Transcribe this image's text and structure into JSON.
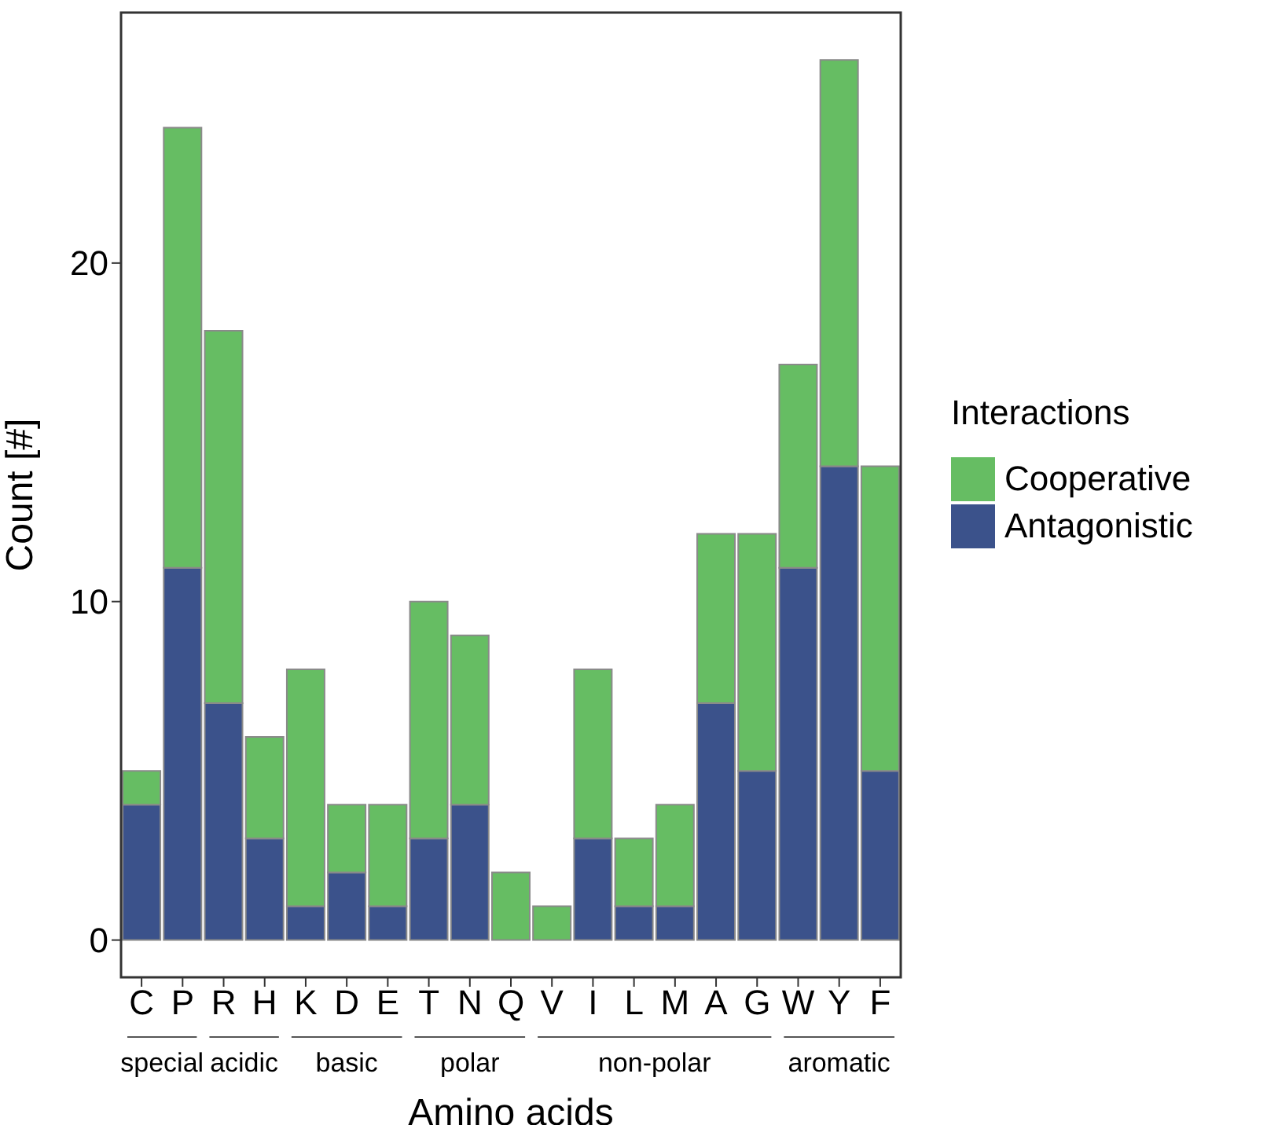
{
  "chart_data": {
    "type": "bar",
    "stacked": true,
    "xlabel": "Amino acids",
    "ylabel": "Count [#]",
    "legend_title": "Interactions",
    "legend": "right",
    "categories": [
      "C",
      "P",
      "R",
      "H",
      "K",
      "D",
      "E",
      "T",
      "N",
      "Q",
      "V",
      "I",
      "L",
      "M",
      "A",
      "G",
      "W",
      "Y",
      "F"
    ],
    "series": [
      {
        "name": "Antagonistic",
        "color": "#3b528b",
        "values": [
          4,
          11,
          7,
          3,
          1,
          2,
          1,
          3,
          4,
          0,
          0,
          3,
          1,
          1,
          7,
          5,
          11,
          14,
          5
        ]
      },
      {
        "name": "Cooperative",
        "color": "#66bd63",
        "values": [
          1,
          13,
          11,
          3,
          7,
          2,
          3,
          7,
          5,
          2,
          1,
          5,
          2,
          3,
          5,
          7,
          6,
          12,
          9
        ]
      }
    ],
    "ylim": [
      -1.1,
      27.4
    ],
    "yticks": [
      0,
      10,
      20
    ],
    "grid": false,
    "annotations": [
      "special",
      "acidic",
      "basic",
      "polar",
      "non-polar",
      "aromatic"
    ]
  }
}
